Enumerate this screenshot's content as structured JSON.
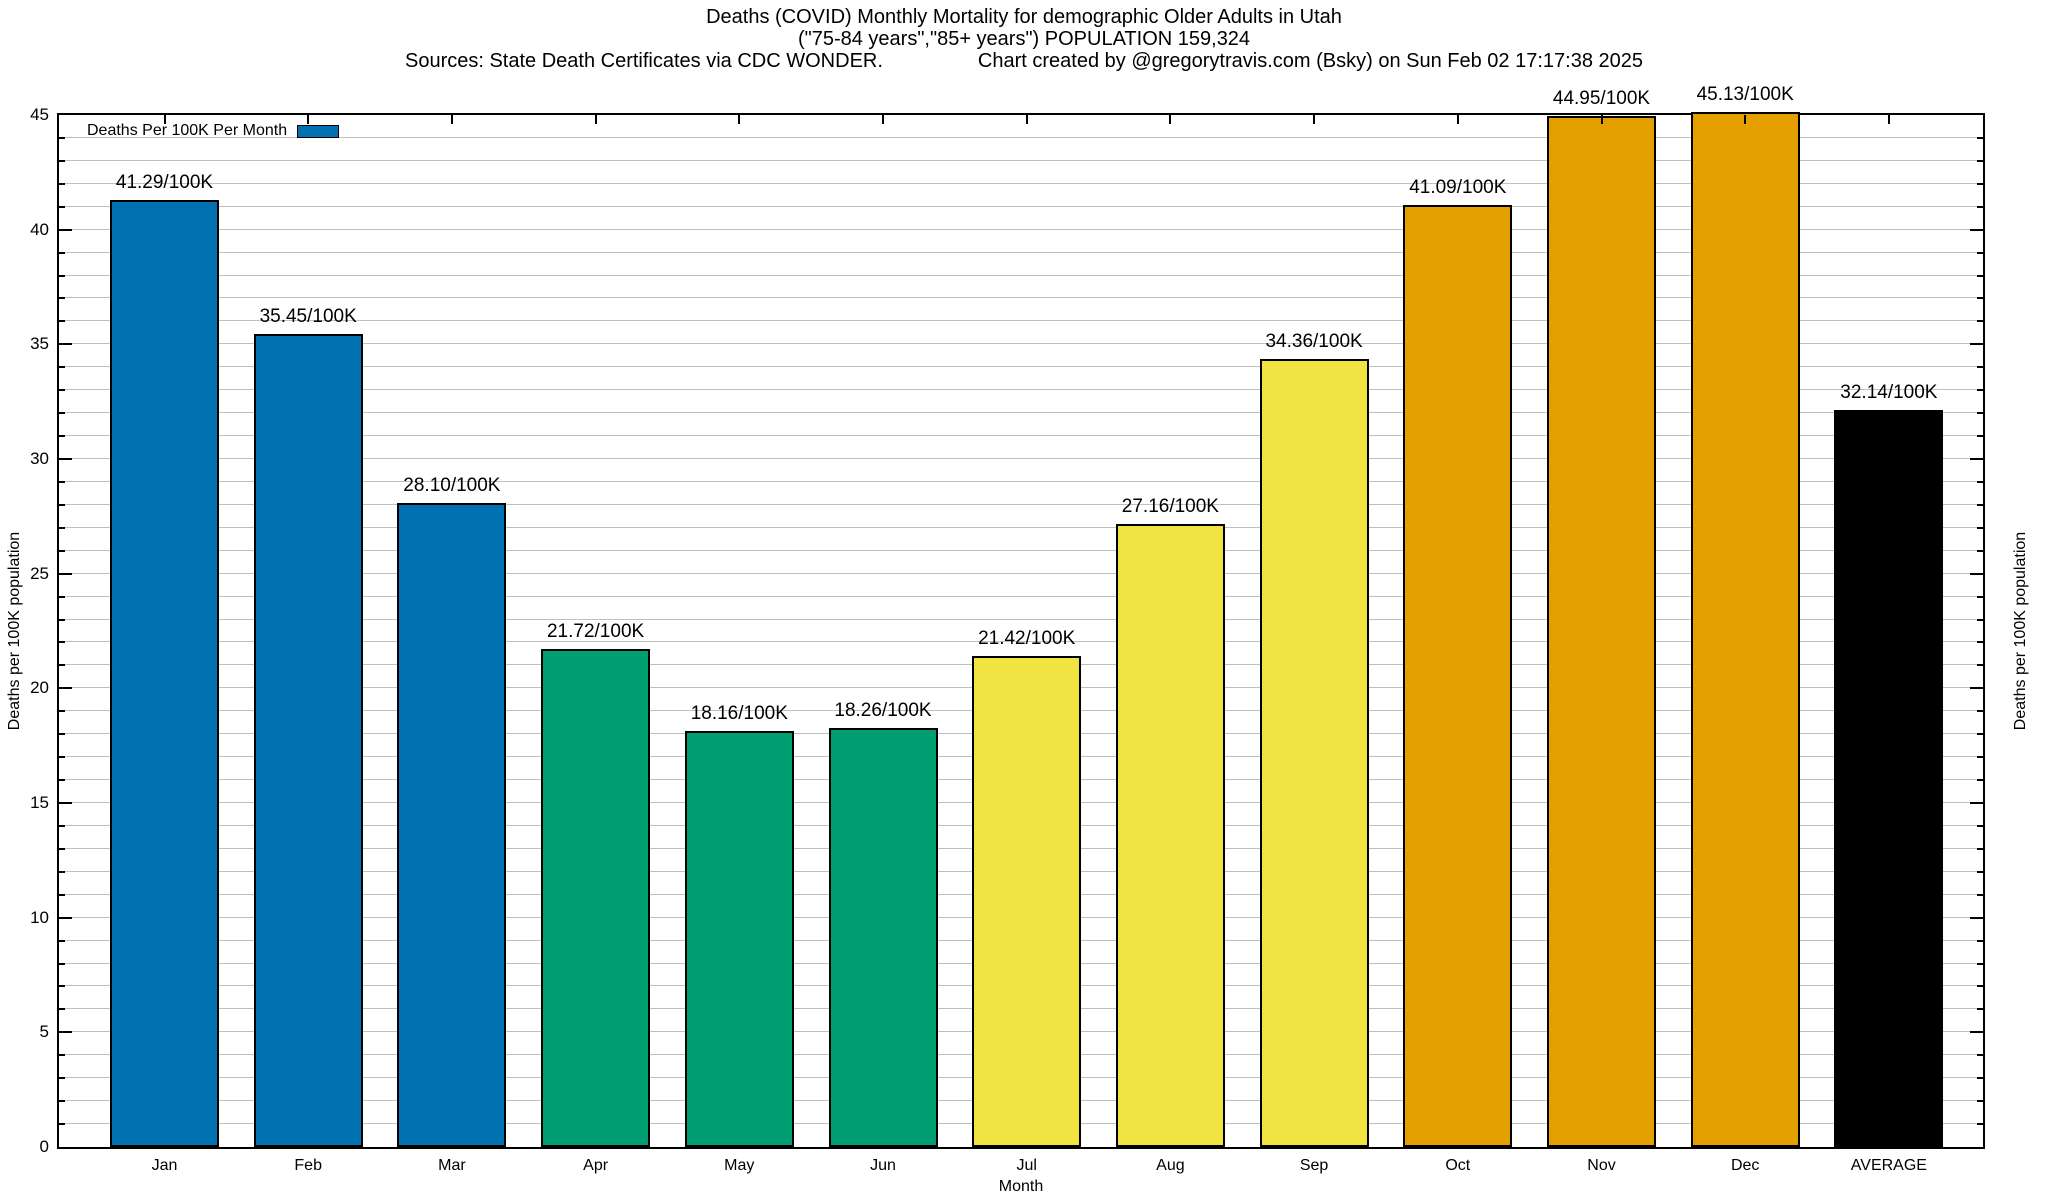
{
  "header": {
    "line1": "Deaths (COVID) Monthly Mortality for demographic Older Adults in Utah",
    "line2": "(\"75-84 years\",\"85+ years\") POPULATION 159,324",
    "line3_left": "Sources: State Death Certificates via CDC WONDER.",
    "line3_right": "Chart created by @gregorytravis.com (Bsky) on Sun Feb 02 17:17:38 2025"
  },
  "legend": {
    "label": "Deaths Per 100K Per Month",
    "swatch_color": "#0072B2"
  },
  "axes": {
    "x_label": "Month",
    "y_left_label": "Deaths per 100K population",
    "y_right_label": "Deaths per 100K population"
  },
  "colors": {
    "blue": "#0072B2",
    "green": "#009E73",
    "yellow": "#F0E442",
    "orange": "#E69F00",
    "black": "#000000",
    "gridline": "#c0c0c0"
  },
  "chart_data": {
    "type": "bar",
    "title": "Deaths (COVID) Monthly Mortality for demographic Older Adults in Utah",
    "subtitle": "(\"75-84 years\",\"85+ years\") POPULATION 159,324",
    "categories": [
      "Jan",
      "Feb",
      "Mar",
      "Apr",
      "May",
      "Jun",
      "Jul",
      "Aug",
      "Sep",
      "Oct",
      "Nov",
      "Dec",
      "AVERAGE"
    ],
    "values": [
      41.29,
      35.45,
      28.1,
      21.72,
      18.16,
      18.26,
      21.42,
      27.16,
      34.36,
      41.09,
      44.95,
      45.13,
      32.14
    ],
    "value_labels": [
      "41.29/100K",
      "35.45/100K",
      "28.10/100K",
      "21.72/100K",
      "18.16/100K",
      "18.26/100K",
      "21.42/100K",
      "27.16/100K",
      "34.36/100K",
      "41.09/100K",
      "44.95/100K",
      "45.13/100K",
      "32.14/100K"
    ],
    "bar_colors": [
      "#0072B2",
      "#0072B2",
      "#0072B2",
      "#009E73",
      "#009E73",
      "#009E73",
      "#F0E442",
      "#F0E442",
      "#F0E442",
      "#E69F00",
      "#E69F00",
      "#E69F00",
      "#000000"
    ],
    "xlabel": "Month",
    "ylabel": "Deaths per 100K population",
    "y2label": "Deaths per 100K population",
    "ylim": [
      0,
      45
    ],
    "y_ticks": [
      0,
      5,
      10,
      15,
      20,
      25,
      30,
      35,
      40,
      45
    ],
    "y_minor_step": 1,
    "grid": true,
    "legend_label": "Deaths Per 100K Per Month",
    "legend_position": "top-left"
  }
}
